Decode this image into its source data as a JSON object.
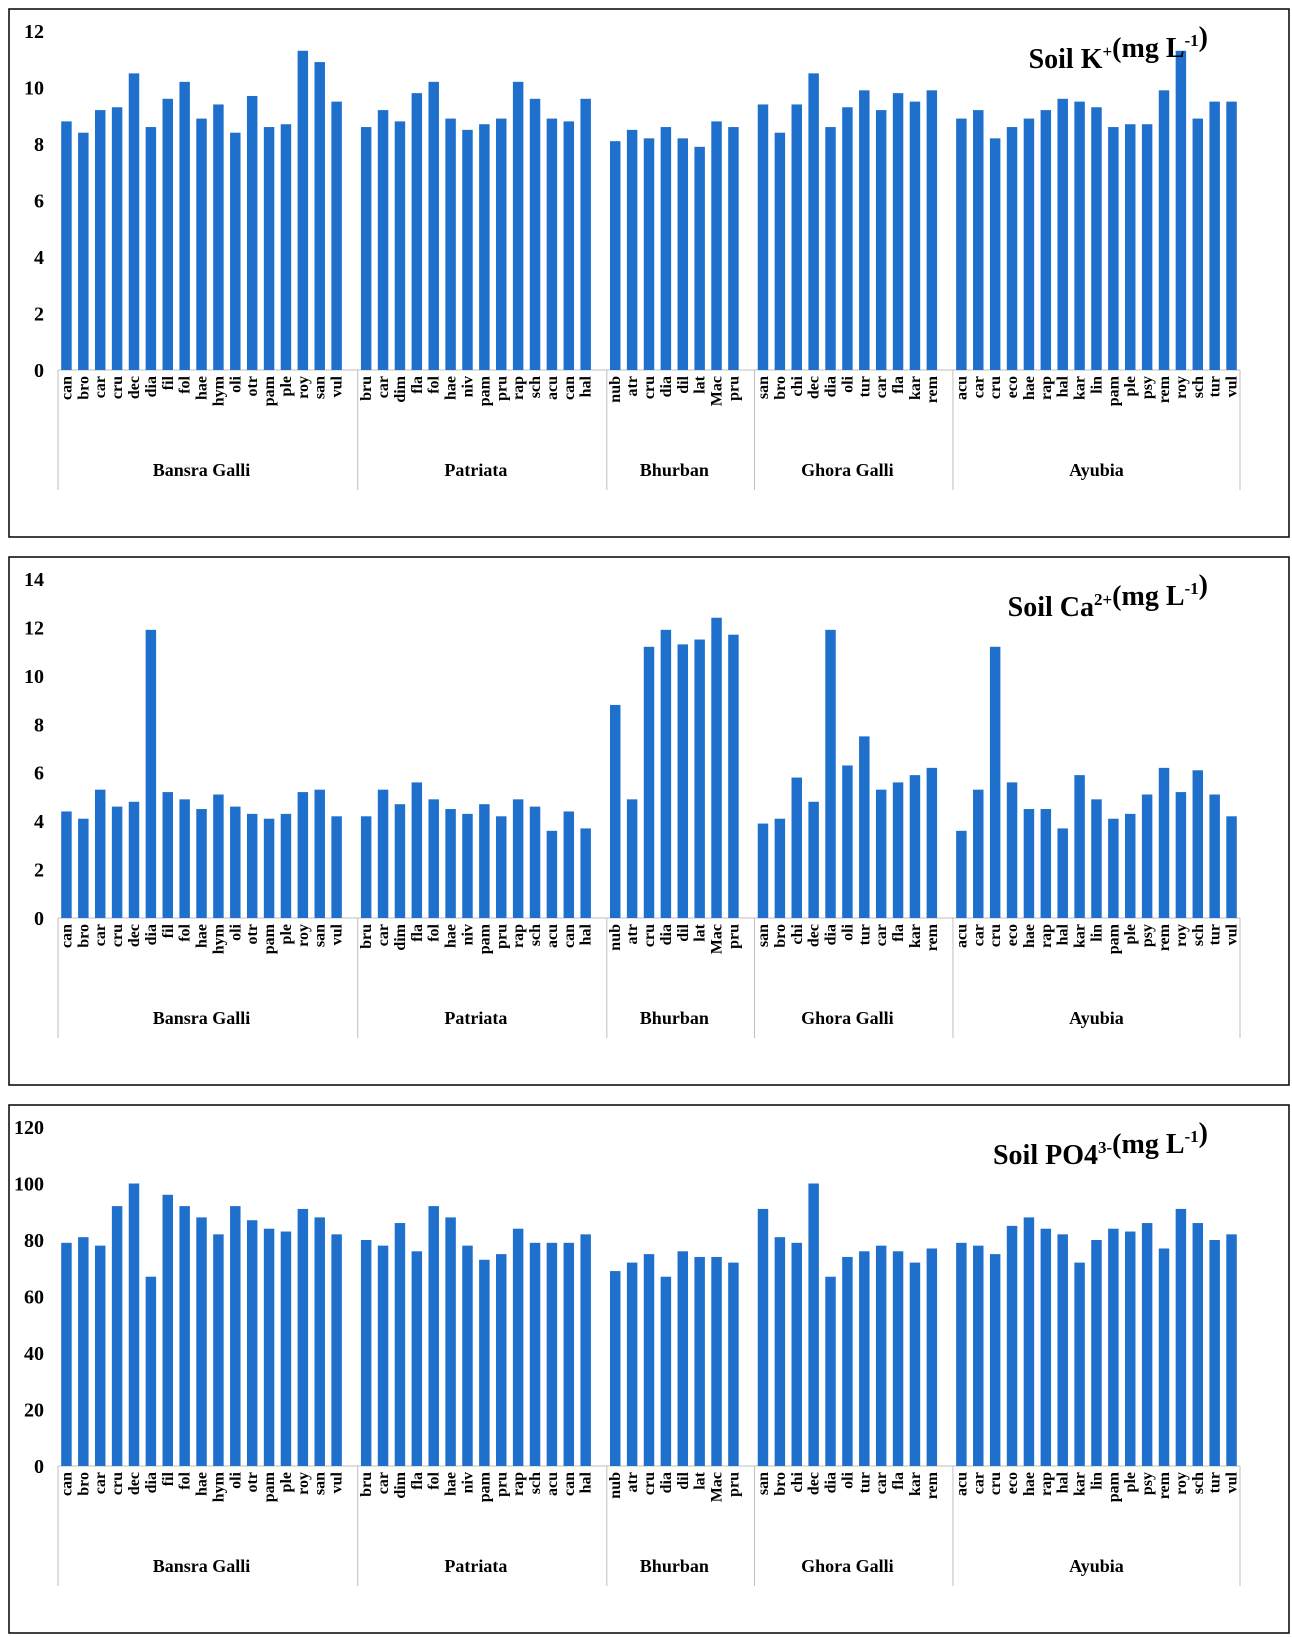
{
  "chart_data": [
    {
      "type": "bar",
      "title": {
        "base": "Soil K",
        "sup": "+",
        "unit": "(mg L",
        "unit_sup": "-1",
        "close": ")"
      },
      "ylim": [
        0,
        12
      ],
      "yticks": [
        0,
        2,
        4,
        6,
        8,
        10,
        12
      ],
      "color": "#1f6fcc",
      "groups": [
        {
          "name": "Bansra Galli",
          "categories": [
            "can",
            "bro",
            "car",
            "cru",
            "dec",
            "dia",
            "fil",
            "fol",
            "hae",
            "hym",
            "oli",
            "otr",
            "pam",
            "ple",
            "roy",
            "san",
            "vul"
          ],
          "values": [
            8.8,
            8.4,
            9.2,
            9.3,
            10.5,
            8.6,
            9.6,
            10.2,
            8.9,
            9.4,
            8.4,
            9.7,
            8.6,
            8.7,
            11.3,
            10.9,
            9.5
          ]
        },
        {
          "name": "Patriata",
          "categories": [
            "bru",
            "car",
            "dim",
            "fla",
            "fol",
            "hae",
            "niv",
            "pam",
            "pru",
            "rap",
            "sch",
            "acu",
            "can",
            "hal"
          ],
          "values": [
            8.6,
            9.2,
            8.8,
            9.8,
            10.2,
            8.9,
            8.5,
            8.7,
            8.9,
            10.2,
            9.6,
            8.9,
            8.8,
            9.6
          ]
        },
        {
          "name": "Bhurban",
          "categories": [
            "nub",
            "atr",
            "cru",
            "dia",
            "dil",
            "lat",
            "Mac",
            "pru"
          ],
          "values": [
            8.1,
            8.5,
            8.2,
            8.6,
            8.2,
            7.9,
            8.8,
            8.6
          ]
        },
        {
          "name": "Ghora Galli",
          "categories": [
            "san",
            "bro",
            "chi",
            "dec",
            "dia",
            "oli",
            "tur",
            "car",
            "fla",
            "kar",
            "rem"
          ],
          "values": [
            9.4,
            8.4,
            9.4,
            10.5,
            8.6,
            9.3,
            9.9,
            9.2,
            9.8,
            9.5,
            9.9
          ]
        },
        {
          "name": "Ayubia",
          "categories": [
            "acu",
            "car",
            "cru",
            "eco",
            "hae",
            "rap",
            "hal",
            "kar",
            "lin",
            "pam",
            "ple",
            "psy",
            "rem",
            "roy",
            "sch",
            "tur",
            "vul"
          ],
          "values": [
            8.9,
            9.2,
            8.2,
            8.6,
            8.9,
            9.2,
            9.6,
            9.5,
            9.3,
            8.6,
            8.7,
            8.7,
            9.9,
            11.3,
            8.9,
            9.5,
            9.5
          ]
        }
      ]
    },
    {
      "type": "bar",
      "title": {
        "base": "Soil Ca",
        "sup": "2+",
        "unit": "(mg L",
        "unit_sup": "-1",
        "close": ")"
      },
      "ylim": [
        0,
        14
      ],
      "yticks": [
        0,
        2,
        4,
        6,
        8,
        10,
        12,
        14
      ],
      "color": "#1f6fcc",
      "groups": [
        {
          "name": "Bansra Galli",
          "categories": [
            "can",
            "bro",
            "car",
            "cru",
            "dec",
            "dia",
            "fil",
            "fol",
            "hae",
            "hym",
            "oli",
            "otr",
            "pam",
            "ple",
            "roy",
            "san",
            "vul"
          ],
          "values": [
            4.4,
            4.1,
            5.3,
            4.6,
            4.8,
            11.9,
            5.2,
            4.9,
            4.5,
            5.1,
            4.6,
            4.3,
            4.1,
            4.3,
            5.2,
            5.3,
            4.2
          ]
        },
        {
          "name": "Patriata",
          "categories": [
            "bru",
            "car",
            "dim",
            "fla",
            "fol",
            "hae",
            "niv",
            "pam",
            "pru",
            "rap",
            "sch",
            "acu",
            "can",
            "hal"
          ],
          "values": [
            4.2,
            5.3,
            4.7,
            5.6,
            4.9,
            4.5,
            4.3,
            4.7,
            4.2,
            4.9,
            4.6,
            3.6,
            4.4,
            3.7
          ]
        },
        {
          "name": "Bhurban",
          "categories": [
            "nub",
            "atr",
            "cru",
            "dia",
            "dil",
            "lat",
            "Mac",
            "pru"
          ],
          "values": [
            8.8,
            4.9,
            11.2,
            11.9,
            11.3,
            11.5,
            12.4,
            11.7
          ]
        },
        {
          "name": "Ghora Galli",
          "categories": [
            "san",
            "bro",
            "chi",
            "dec",
            "dia",
            "oli",
            "tur",
            "car",
            "fla",
            "kar",
            "rem"
          ],
          "values": [
            3.9,
            4.1,
            5.8,
            4.8,
            11.9,
            6.3,
            7.5,
            5.3,
            5.6,
            5.9,
            6.2
          ]
        },
        {
          "name": "Ayubia",
          "categories": [
            "acu",
            "car",
            "cru",
            "eco",
            "hae",
            "rap",
            "hal",
            "kar",
            "lin",
            "pam",
            "ple",
            "psy",
            "rem",
            "roy",
            "sch",
            "tur",
            "vul"
          ],
          "values": [
            3.6,
            5.3,
            11.2,
            5.6,
            4.5,
            4.5,
            3.7,
            5.9,
            4.9,
            4.1,
            4.3,
            5.1,
            6.2,
            5.2,
            6.1,
            5.1,
            4.2
          ]
        }
      ]
    },
    {
      "type": "bar",
      "title": {
        "base": "Soil PO4",
        "sup": "3-",
        "unit": "(mg L",
        "unit_sup": "-1",
        "close": ")"
      },
      "ylim": [
        0,
        120
      ],
      "yticks": [
        0,
        20,
        40,
        60,
        80,
        100,
        120
      ],
      "color": "#1f6fcc",
      "groups": [
        {
          "name": "Bansra Galli",
          "categories": [
            "can",
            "bro",
            "car",
            "cru",
            "dec",
            "dia",
            "fil",
            "fol",
            "hae",
            "hym",
            "oli",
            "otr",
            "pam",
            "ple",
            "roy",
            "san",
            "vul"
          ],
          "values": [
            79,
            81,
            78,
            92,
            100,
            67,
            96,
            92,
            88,
            82,
            92,
            87,
            84,
            83,
            91,
            88,
            82
          ]
        },
        {
          "name": "Patriata",
          "categories": [
            "bru",
            "car",
            "dim",
            "fla",
            "fol",
            "hae",
            "niv",
            "pam",
            "pru",
            "rap",
            "sch",
            "acu",
            "can",
            "hal"
          ],
          "values": [
            80,
            78,
            86,
            76,
            92,
            88,
            78,
            73,
            75,
            84,
            79,
            79,
            79,
            82
          ]
        },
        {
          "name": "Bhurban",
          "categories": [
            "nub",
            "atr",
            "cru",
            "dia",
            "dil",
            "lat",
            "Mac",
            "pru"
          ],
          "values": [
            69,
            72,
            75,
            67,
            76,
            74,
            74,
            72
          ]
        },
        {
          "name": "Ghora Galli",
          "categories": [
            "san",
            "bro",
            "chi",
            "dec",
            "dia",
            "oli",
            "tur",
            "car",
            "fla",
            "kar",
            "rem"
          ],
          "values": [
            91,
            81,
            79,
            100,
            67,
            74,
            76,
            78,
            76,
            72,
            77
          ]
        },
        {
          "name": "Ayubia",
          "categories": [
            "acu",
            "car",
            "cru",
            "eco",
            "hae",
            "rap",
            "hal",
            "kar",
            "lin",
            "pam",
            "ple",
            "psy",
            "rem",
            "roy",
            "sch",
            "tur",
            "vul"
          ],
          "values": [
            79,
            78,
            75,
            85,
            88,
            84,
            82,
            72,
            80,
            84,
            83,
            86,
            77,
            91,
            86,
            80,
            82
          ]
        }
      ]
    }
  ]
}
